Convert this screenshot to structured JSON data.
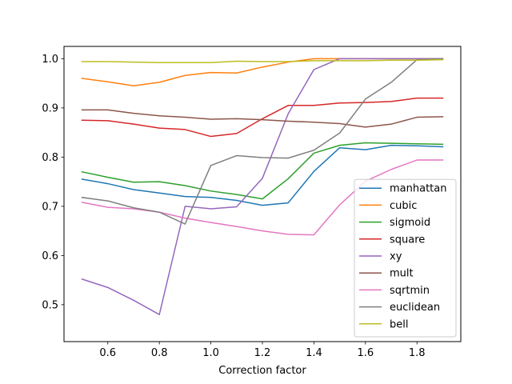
{
  "chart_data": {
    "type": "line",
    "title": "",
    "xlabel": "Correction factor",
    "ylabel": "",
    "xlim": [
      0.43,
      1.97
    ],
    "ylim": [
      0.425,
      1.025
    ],
    "xticks": [
      0.6,
      0.8,
      1.0,
      1.2,
      1.4,
      1.6,
      1.8
    ],
    "yticks": [
      0.5,
      0.6,
      0.7,
      0.8,
      0.9,
      1.0
    ],
    "grid": false,
    "legend_position": "lower-right",
    "x": [
      0.5,
      0.6,
      0.7,
      0.8,
      0.9,
      1.0,
      1.1,
      1.2,
      1.3,
      1.4,
      1.5,
      1.6,
      1.7,
      1.8,
      1.9
    ],
    "series": [
      {
        "name": "manhattan",
        "color": "#1f77b4",
        "values": [
          0.755,
          0.746,
          0.734,
          0.727,
          0.72,
          0.718,
          0.712,
          0.702,
          0.707,
          0.771,
          0.819,
          0.815,
          0.824,
          0.823,
          0.821
        ]
      },
      {
        "name": "cubic",
        "color": "#ff7f0e",
        "values": [
          0.96,
          0.953,
          0.945,
          0.952,
          0.966,
          0.972,
          0.971,
          0.983,
          0.993,
          1.0,
          1.0,
          1.0,
          1.0,
          1.0,
          1.0
        ]
      },
      {
        "name": "sigmoid",
        "color": "#2ca02c",
        "values": [
          0.77,
          0.759,
          0.749,
          0.75,
          0.742,
          0.731,
          0.724,
          0.715,
          0.756,
          0.808,
          0.824,
          0.829,
          0.828,
          0.827,
          0.826
        ]
      },
      {
        "name": "square",
        "color": "#d62728",
        "values": [
          0.875,
          0.874,
          0.867,
          0.859,
          0.856,
          0.842,
          0.848,
          0.878,
          0.905,
          0.905,
          0.91,
          0.911,
          0.913,
          0.92,
          0.92
        ]
      },
      {
        "name": "xy",
        "color": "#9467bd",
        "values": [
          0.552,
          0.535,
          0.509,
          0.48,
          0.7,
          0.695,
          0.699,
          0.757,
          0.888,
          0.978,
          1.0,
          1.0,
          1.0,
          1.0,
          1.0
        ]
      },
      {
        "name": "mult",
        "color": "#8c564b",
        "values": [
          0.896,
          0.896,
          0.889,
          0.884,
          0.881,
          0.877,
          0.878,
          0.876,
          0.873,
          0.871,
          0.868,
          0.861,
          0.867,
          0.881,
          0.882
        ]
      },
      {
        "name": "sqrtmin",
        "color": "#e377c2",
        "values": [
          0.708,
          0.698,
          0.695,
          0.688,
          0.676,
          0.667,
          0.659,
          0.65,
          0.643,
          0.642,
          0.703,
          0.751,
          0.775,
          0.794,
          0.794
        ]
      },
      {
        "name": "euclidean",
        "color": "#7f7f7f",
        "values": [
          0.718,
          0.711,
          0.697,
          0.688,
          0.664,
          0.783,
          0.803,
          0.799,
          0.798,
          0.814,
          0.849,
          0.918,
          0.952,
          0.998,
          1.0
        ]
      },
      {
        "name": "bell",
        "color": "#bcbd22",
        "values": [
          0.994,
          0.994,
          0.993,
          0.992,
          0.992,
          0.992,
          0.995,
          0.994,
          0.994,
          0.996,
          0.996,
          0.996,
          0.997,
          0.997,
          0.998
        ]
      }
    ]
  }
}
